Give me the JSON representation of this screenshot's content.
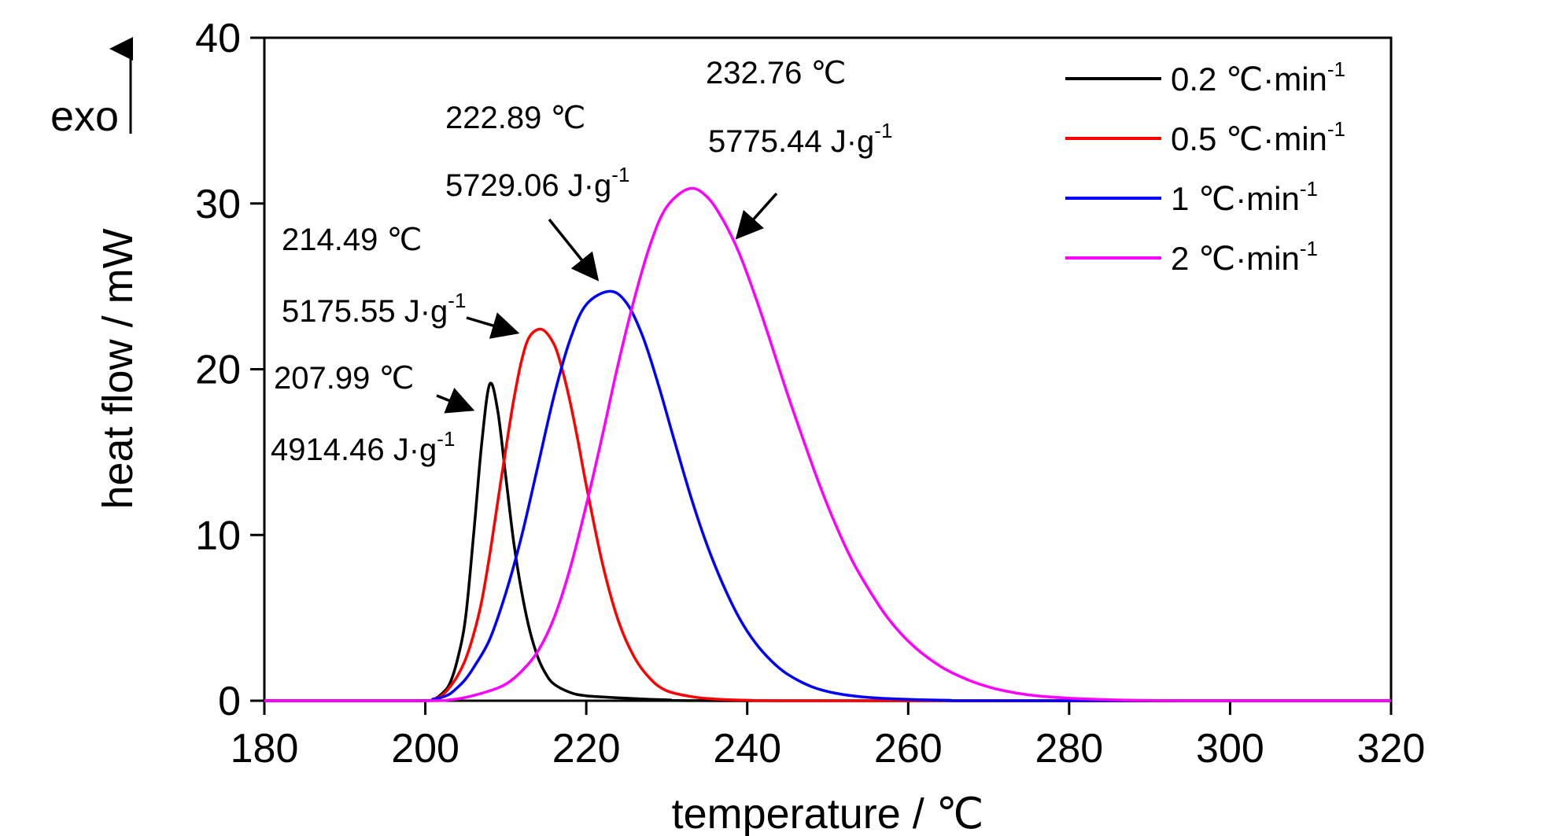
{
  "chart_data": {
    "type": "line",
    "xlabel": "temperature / ℃",
    "ylabel": "heat flow / mW",
    "exo_label": "exo",
    "xlim": [
      180,
      320
    ],
    "ylim": [
      0,
      40
    ],
    "xticks": [
      180,
      200,
      220,
      240,
      260,
      280,
      300,
      320
    ],
    "yticks": [
      0,
      10,
      20,
      30,
      40
    ],
    "grid": false,
    "legend_position": "top-right",
    "series": [
      {
        "name": "0.2 ℃·min",
        "name_sup": "-1",
        "color": "#000000",
        "points": [
          [
            180,
            0
          ],
          [
            199,
            0
          ],
          [
            201,
            0.1
          ],
          [
            202,
            0.4
          ],
          [
            203,
            1.0
          ],
          [
            204,
            2.5
          ],
          [
            205,
            5.0
          ],
          [
            206,
            10.0
          ],
          [
            207,
            15.5
          ],
          [
            208,
            19.1
          ],
          [
            209,
            17.5
          ],
          [
            210,
            13.5
          ],
          [
            211,
            9.5
          ],
          [
            212,
            6.5
          ],
          [
            213,
            4.2
          ],
          [
            214,
            2.6
          ],
          [
            215,
            1.6
          ],
          [
            216,
            1.0
          ],
          [
            218,
            0.5
          ],
          [
            220,
            0.3
          ],
          [
            225,
            0.15
          ],
          [
            230,
            0.05
          ],
          [
            240,
            0
          ],
          [
            320,
            0
          ]
        ]
      },
      {
        "name": "0.5 ℃·min",
        "name_sup": "-1",
        "color": "#ff0000",
        "points": [
          [
            180,
            0
          ],
          [
            199,
            0
          ],
          [
            201,
            0.1
          ],
          [
            202,
            0.3
          ],
          [
            203,
            0.8
          ],
          [
            204,
            1.5
          ],
          [
            205,
            2.5
          ],
          [
            206,
            4.0
          ],
          [
            207,
            6.0
          ],
          [
            208,
            8.8
          ],
          [
            209,
            12.0
          ],
          [
            210,
            15.2
          ],
          [
            211,
            18.2
          ],
          [
            212,
            20.6
          ],
          [
            213,
            22.0
          ],
          [
            214.5,
            22.4
          ],
          [
            216,
            21.5
          ],
          [
            217,
            20.0
          ],
          [
            218,
            18.0
          ],
          [
            219,
            15.6
          ],
          [
            220,
            13.0
          ],
          [
            222,
            8.3
          ],
          [
            224,
            4.8
          ],
          [
            226,
            2.6
          ],
          [
            228,
            1.3
          ],
          [
            230,
            0.6
          ],
          [
            233,
            0.25
          ],
          [
            236,
            0.1
          ],
          [
            240,
            0.03
          ],
          [
            250,
            0
          ],
          [
            320,
            0
          ]
        ]
      },
      {
        "name": "1 ℃·min",
        "name_sup": "-1",
        "color": "#0000ff",
        "points": [
          [
            180,
            0
          ],
          [
            199,
            0
          ],
          [
            201,
            0.1
          ],
          [
            202,
            0.2
          ],
          [
            203,
            0.4
          ],
          [
            204,
            0.8
          ],
          [
            205,
            1.3
          ],
          [
            206,
            2.0
          ],
          [
            208,
            3.7
          ],
          [
            210,
            6.5
          ],
          [
            212,
            10.0
          ],
          [
            214,
            14.2
          ],
          [
            216,
            18.4
          ],
          [
            218,
            21.8
          ],
          [
            220,
            23.9
          ],
          [
            222.9,
            24.7
          ],
          [
            225,
            24.0
          ],
          [
            227,
            22.0
          ],
          [
            229,
            19.0
          ],
          [
            231,
            15.6
          ],
          [
            233,
            12.3
          ],
          [
            235,
            9.4
          ],
          [
            237,
            7.0
          ],
          [
            239,
            5.0
          ],
          [
            241,
            3.5
          ],
          [
            243,
            2.4
          ],
          [
            245,
            1.6
          ],
          [
            248,
            0.85
          ],
          [
            251,
            0.45
          ],
          [
            255,
            0.2
          ],
          [
            260,
            0.08
          ],
          [
            265,
            0.03
          ],
          [
            270,
            0
          ],
          [
            320,
            0
          ]
        ]
      },
      {
        "name": "2 ℃·min",
        "name_sup": "-1",
        "color": "#ff00ff",
        "points": [
          [
            180,
            0
          ],
          [
            200,
            0
          ],
          [
            203,
            0.05
          ],
          [
            205,
            0.2
          ],
          [
            208,
            0.6
          ],
          [
            210,
            1.0
          ],
          [
            212,
            1.8
          ],
          [
            214,
            3.0
          ],
          [
            216,
            5.0
          ],
          [
            218,
            8.0
          ],
          [
            220,
            11.8
          ],
          [
            222,
            16.0
          ],
          [
            224,
            20.4
          ],
          [
            226,
            24.3
          ],
          [
            228,
            27.6
          ],
          [
            230,
            29.8
          ],
          [
            232.8,
            30.9
          ],
          [
            235,
            30.4
          ],
          [
            237,
            29.0
          ],
          [
            239,
            27.0
          ],
          [
            241,
            24.4
          ],
          [
            243,
            21.5
          ],
          [
            245,
            18.5
          ],
          [
            247,
            15.7
          ],
          [
            249,
            13.0
          ],
          [
            251,
            10.6
          ],
          [
            253,
            8.5
          ],
          [
            255,
            6.8
          ],
          [
            257,
            5.3
          ],
          [
            259,
            4.1
          ],
          [
            261,
            3.15
          ],
          [
            263,
            2.4
          ],
          [
            265,
            1.8
          ],
          [
            268,
            1.15
          ],
          [
            271,
            0.7
          ],
          [
            275,
            0.35
          ],
          [
            280,
            0.15
          ],
          [
            285,
            0.06
          ],
          [
            290,
            0.02
          ],
          [
            295,
            0
          ],
          [
            320,
            0
          ]
        ]
      }
    ],
    "annotations": [
      {
        "id": "a1",
        "line1": "207.99 ℃",
        "line2": "4914.46 J·g",
        "sup": "-1",
        "peak": [
          208,
          19.1
        ]
      },
      {
        "id": "a2",
        "line1": "214.49 ℃",
        "line2": "5175.55 J·g",
        "sup": "-1",
        "peak": [
          214.5,
          22.4
        ]
      },
      {
        "id": "a3",
        "line1": "222.89 ℃",
        "line2": "5729.06 J·g",
        "sup": "-1",
        "peak": [
          222.9,
          24.7
        ]
      },
      {
        "id": "a4",
        "line1": "232.76 ℃",
        "line2": "5775.44 J·g",
        "sup": "-1",
        "peak": [
          232.8,
          30.9
        ]
      }
    ]
  }
}
